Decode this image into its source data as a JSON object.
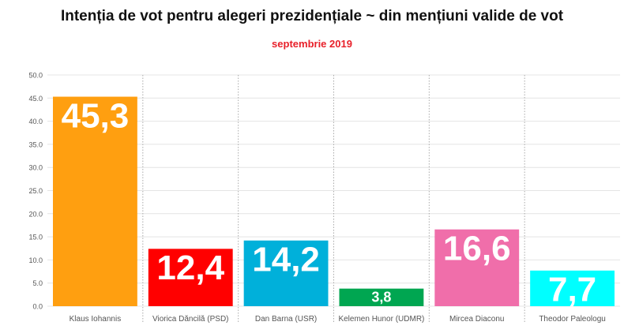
{
  "chart_data": {
    "type": "bar",
    "title": "Intenția de vot pentru alegeri prezidențiale ~ din mențiuni valide de vot",
    "subtitle": "septembrie 2019",
    "xlabel": "",
    "ylabel": "",
    "ylim": [
      0,
      50
    ],
    "yticks": [
      "0.0",
      "5.0",
      "10.0",
      "15.0",
      "20.0",
      "25.0",
      "30.0",
      "35.0",
      "40.0",
      "45.0",
      "50.0"
    ],
    "grid": true,
    "categories": [
      "Klaus Iohannis",
      "Viorica Dăncilă (PSD)",
      "Dan Barna (USR)",
      "Kelemen Hunor (UDMR)",
      "Mircea Diaconu",
      "Theodor Paleologu"
    ],
    "values": [
      45.3,
      12.4,
      14.2,
      3.8,
      16.6,
      7.7
    ],
    "data_labels": [
      "45,3",
      "12,4",
      "14,2",
      "3,8",
      "16,6",
      "7,7"
    ],
    "colors": [
      "#FF9F10",
      "#FF0000",
      "#00B0DA",
      "#00A651",
      "#F06EAA",
      "#00FFFF"
    ]
  }
}
